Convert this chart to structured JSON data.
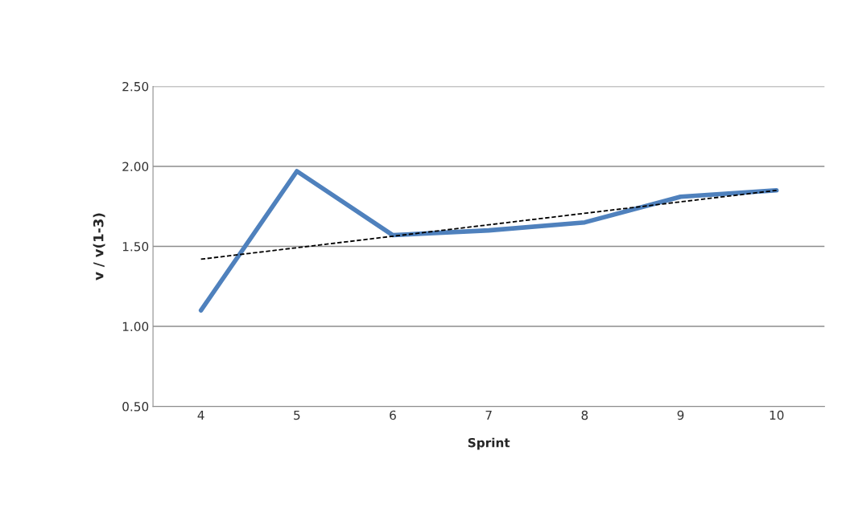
{
  "chart_data": {
    "type": "line",
    "xlabel": "Sprint",
    "ylabel": "v / v(1-3)",
    "xlim": [
      3.5,
      10.5
    ],
    "xticks": [
      4,
      5,
      6,
      7,
      8,
      9,
      10
    ],
    "ylim": [
      0.5,
      2.5
    ],
    "yticks": [
      {
        "value": 0.5,
        "label": "0.50"
      },
      {
        "value": 1.0,
        "label": "1.00"
      },
      {
        "value": 1.5,
        "label": "1.50"
      },
      {
        "value": 2.0,
        "label": "2.00"
      },
      {
        "value": 2.5,
        "label": "2.50"
      }
    ],
    "grid": "y",
    "series": [
      {
        "color": "#4f81bd",
        "x": [
          4,
          5,
          6,
          7,
          8,
          9,
          10
        ],
        "values": [
          1.1,
          1.97,
          1.57,
          1.6,
          1.65,
          1.81,
          1.85
        ],
        "line_style": "solid"
      },
      {
        "color": "#000000",
        "x": [
          4,
          10
        ],
        "values": [
          1.42,
          1.85
        ],
        "line_style": "dashed"
      }
    ]
  }
}
